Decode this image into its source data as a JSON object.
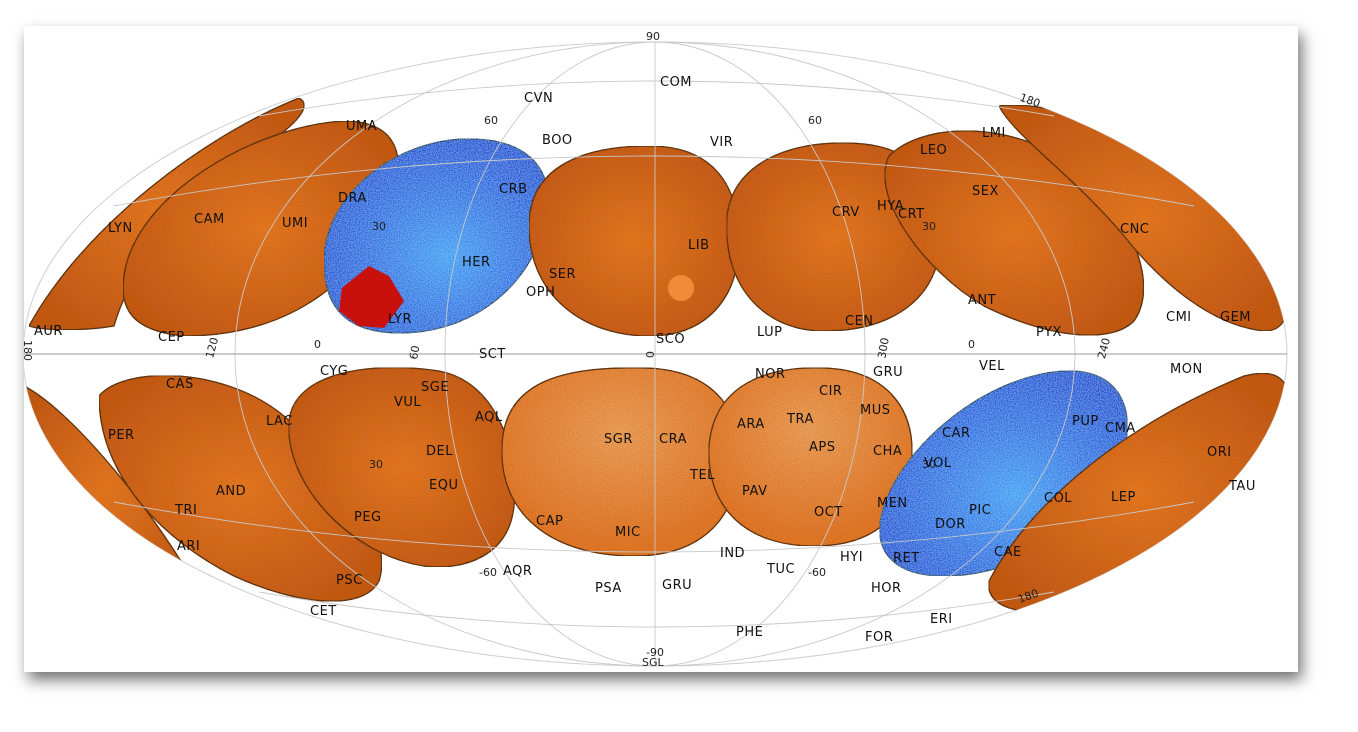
{
  "colors": {
    "background": "#ffffff",
    "orange": "#e66a14",
    "orange_dark": "#a8400a",
    "blue": "#1a4fe0",
    "blue_light": "#4ab0f5",
    "red_patch": "#cc0a0a",
    "grid": "#c8c8c8"
  },
  "ticks": {
    "top": "90",
    "bottom": "-90",
    "bottom_label": "SGL",
    "left": "180",
    "lat60_left": "60",
    "lat60_right": "60",
    "lat30_left": "30",
    "lat30_right": "30",
    "eq_120": "120",
    "eq_0a": "0",
    "eq_60": "60",
    "eq_0b": "0",
    "eq_300": "300",
    "eq_0c": "0",
    "eq_240": "240",
    "lat_m30_left": "30",
    "lat_m30_right": "30",
    "lat_m60_left": "-60",
    "lat_m60_right": "-60",
    "corner_tr": "180",
    "corner_br": "180"
  },
  "constellations": [
    {
      "name": "COM"
    },
    {
      "name": "CVN"
    },
    {
      "name": "BOO"
    },
    {
      "name": "VIR"
    },
    {
      "name": "UMA"
    },
    {
      "name": "LMI"
    },
    {
      "name": "LEO"
    },
    {
      "name": "DRA"
    },
    {
      "name": "CRB"
    },
    {
      "name": "HYA"
    },
    {
      "name": "CRV"
    },
    {
      "name": "CRT"
    },
    {
      "name": "SEX"
    },
    {
      "name": "CAM"
    },
    {
      "name": "UMI"
    },
    {
      "name": "LYN"
    },
    {
      "name": "CNC"
    },
    {
      "name": "HER"
    },
    {
      "name": "LIB"
    },
    {
      "name": "SER"
    },
    {
      "name": "OPH"
    },
    {
      "name": "LYR"
    },
    {
      "name": "ANT"
    },
    {
      "name": "CEN"
    },
    {
      "name": "AUR"
    },
    {
      "name": "CEP"
    },
    {
      "name": "CMI"
    },
    {
      "name": "GEM"
    },
    {
      "name": "PYX"
    },
    {
      "name": "LUP"
    },
    {
      "name": "SCO"
    },
    {
      "name": "SCT"
    },
    {
      "name": "CYG"
    },
    {
      "name": "NOR"
    },
    {
      "name": "GRU"
    },
    {
      "name": "VEL"
    },
    {
      "name": "MON"
    },
    {
      "name": "CAS"
    },
    {
      "name": "SGE"
    },
    {
      "name": "CIR"
    },
    {
      "name": "VUL"
    },
    {
      "name": "AQL"
    },
    {
      "name": "LAC"
    },
    {
      "name": "TRA"
    },
    {
      "name": "MUS"
    },
    {
      "name": "PUP"
    },
    {
      "name": "CMA"
    },
    {
      "name": "PER"
    },
    {
      "name": "ARA"
    },
    {
      "name": "CAR"
    },
    {
      "name": "SGR"
    },
    {
      "name": "CRA"
    },
    {
      "name": "APS"
    },
    {
      "name": "CHA"
    },
    {
      "name": "DEL"
    },
    {
      "name": "ORI"
    },
    {
      "name": "VOL"
    },
    {
      "name": "TEL"
    },
    {
      "name": "EQU"
    },
    {
      "name": "TAU"
    },
    {
      "name": "AND"
    },
    {
      "name": "PAV"
    },
    {
      "name": "MEN"
    },
    {
      "name": "COL"
    },
    {
      "name": "LEP"
    },
    {
      "name": "TRI"
    },
    {
      "name": "PEG"
    },
    {
      "name": "CAP"
    },
    {
      "name": "OCT"
    },
    {
      "name": "PIC"
    },
    {
      "name": "DOR"
    },
    {
      "name": "MIC"
    },
    {
      "name": "ARI"
    },
    {
      "name": "IND"
    },
    {
      "name": "HYI"
    },
    {
      "name": "RET"
    },
    {
      "name": "CAE"
    },
    {
      "name": "PSC"
    },
    {
      "name": "AQR"
    },
    {
      "name": "TUC"
    },
    {
      "name": "CET"
    },
    {
      "name": "PSA"
    },
    {
      "name": "GRU"
    },
    {
      "name": "HOR"
    },
    {
      "name": "ERI"
    },
    {
      "name": "PHE"
    },
    {
      "name": "FOR"
    }
  ]
}
